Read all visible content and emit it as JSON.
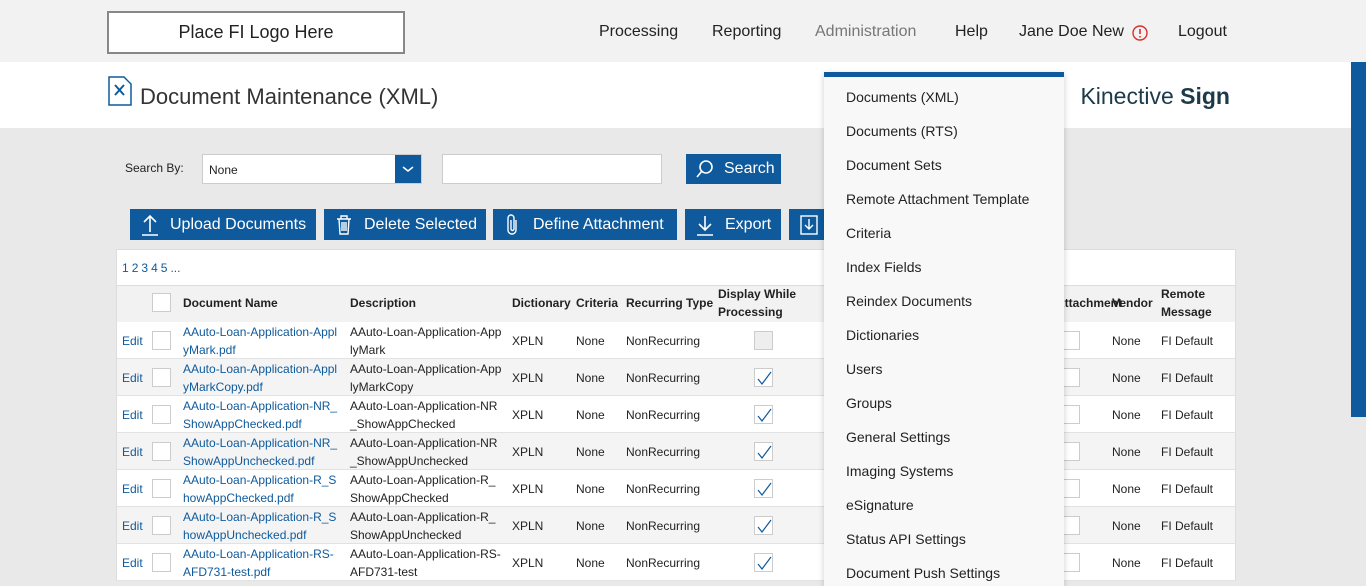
{
  "header": {
    "logo": "Place FI Logo Here",
    "nav": [
      "Processing",
      "Reporting",
      "Administration",
      "Help",
      "Jane Doe New",
      "Logout"
    ]
  },
  "page": {
    "title": "Document Maintenance (XML)",
    "brand": "Kinective",
    "brand_bold": "Sign"
  },
  "search": {
    "label": "Search By:",
    "select": "None",
    "button": "Search"
  },
  "toolbar": [
    "Upload Documents",
    "Delete Selected",
    "Define Attachment",
    "Export"
  ],
  "pagination": [
    "1",
    "2",
    "3",
    "4",
    "5",
    "..."
  ],
  "table": {
    "edit_label": "Edit",
    "columns": [
      "Document Name",
      "Description",
      "Dictionary",
      "Criteria",
      "Recurring Type",
      "Display While Processing",
      "Attachment",
      "Vendor",
      "Remote Message"
    ],
    "rows": [
      {
        "name": "AAuto-Loan-Application-ApplyMark.pdf",
        "description": "AAuto-Loan-Application-ApplyMark",
        "dictionary": "XPLN",
        "criteria": "None",
        "recurring": "NonRecurring",
        "display": false,
        "vendor": "None",
        "remote": "FI Default"
      },
      {
        "name": "AAuto-Loan-Application-ApplyMarkCopy.pdf",
        "description": "AAuto-Loan-Application-ApplyMarkCopy",
        "dictionary": "XPLN",
        "criteria": "None",
        "recurring": "NonRecurring",
        "display": true,
        "vendor": "None",
        "remote": "FI Default"
      },
      {
        "name": "AAuto-Loan-Application-NR_ShowAppChecked.pdf",
        "description": "AAuto-Loan-Application-NR_ShowAppChecked",
        "dictionary": "XPLN",
        "criteria": "None",
        "recurring": "NonRecurring",
        "display": true,
        "vendor": "None",
        "remote": "FI Default"
      },
      {
        "name": "AAuto-Loan-Application-NR_ShowAppUnchecked.pdf",
        "description": "AAuto-Loan-Application-NR_ShowAppUnchecked",
        "dictionary": "XPLN",
        "criteria": "None",
        "recurring": "NonRecurring",
        "display": true,
        "vendor": "None",
        "remote": "FI Default"
      },
      {
        "name": "AAuto-Loan-Application-R_ShowAppChecked.pdf",
        "description": "AAuto-Loan-Application-R_ShowAppChecked",
        "dictionary": "XPLN",
        "criteria": "None",
        "recurring": "NonRecurring",
        "display": true,
        "vendor": "None",
        "remote": "FI Default"
      },
      {
        "name": "AAuto-Loan-Application-R_ShowAppUnchecked.pdf",
        "description": "AAuto-Loan-Application-R_ShowAppUnchecked",
        "dictionary": "XPLN",
        "criteria": "None",
        "recurring": "NonRecurring",
        "display": true,
        "vendor": "None",
        "remote": "FI Default"
      },
      {
        "name": "AAuto-Loan-Application-RS-AFD731-test.pdf",
        "description": "AAuto-Loan-Application-RS-AFD731-test",
        "dictionary": "XPLN",
        "criteria": "None",
        "recurring": "NonRecurring",
        "display": true,
        "vendor": "None",
        "remote": "FI Default"
      }
    ]
  },
  "menu": [
    "Documents (XML)",
    "Documents (RTS)",
    "Document Sets",
    "Remote Attachment Template",
    "Criteria",
    "Index Fields",
    "Reindex Documents",
    "Dictionaries",
    "Users",
    "Groups",
    "General Settings",
    "Imaging Systems",
    "eSignature",
    "Status API Settings",
    "Document Push Settings"
  ]
}
